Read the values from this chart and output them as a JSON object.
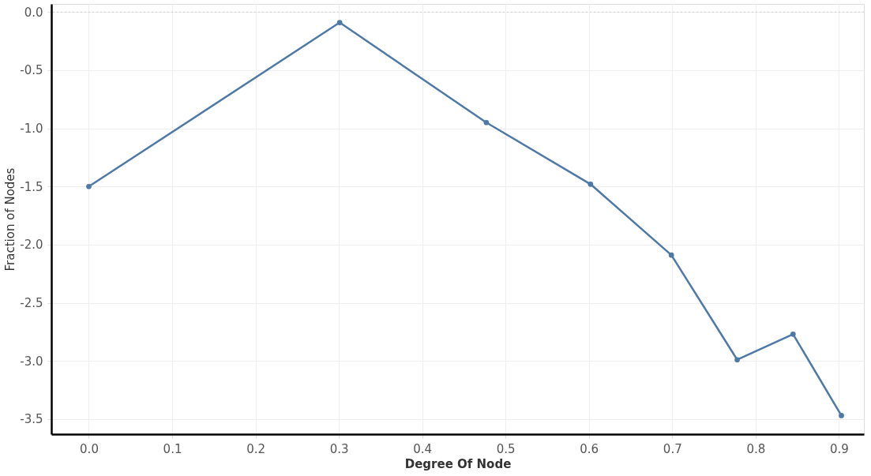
{
  "chart_data": {
    "type": "line",
    "xlabel": "Degree Of Node",
    "ylabel": "Fraction of Nodes",
    "x": [
      0.0,
      0.301,
      0.477,
      0.602,
      0.699,
      0.778,
      0.845,
      0.903
    ],
    "series": [
      {
        "color": "#4e79a7",
        "values": [
          -1.5,
          -0.09,
          -0.95,
          -1.48,
          -2.09,
          -2.99,
          -2.77,
          -3.47
        ]
      }
    ],
    "xlim": [
      -0.045,
      0.93
    ],
    "xticks": [
      {
        "value": 0,
        "label": "0.0"
      },
      {
        "value": 0.1,
        "label": "0.1"
      },
      {
        "value": 0.2,
        "label": "0.2"
      },
      {
        "value": 0.3,
        "label": "0.3"
      },
      {
        "value": 0.4,
        "label": "0.4"
      },
      {
        "value": 0.5,
        "label": "0.5"
      },
      {
        "value": 0.6,
        "label": "0.6"
      },
      {
        "value": 0.7,
        "label": "0.7"
      },
      {
        "value": 0.8,
        "label": "0.8"
      },
      {
        "value": 0.9,
        "label": "0.9"
      }
    ],
    "ylim": [
      -3.63,
      0.07
    ],
    "yticks": [
      {
        "value": 0,
        "label": "0.0"
      },
      -0.5,
      {
        "value": -1,
        "label": "-1.0"
      },
      -1.5,
      {
        "value": -2,
        "label": "-2.0"
      },
      -2.5,
      {
        "value": -3,
        "label": "-3.0"
      },
      -3.5
    ],
    "ref_lines": [
      {
        "axis": "y",
        "value": 0,
        "color": "#cccccc",
        "line_style": "dotted"
      }
    ],
    "grid": true,
    "marker": "circle",
    "line_style": "solid"
  }
}
